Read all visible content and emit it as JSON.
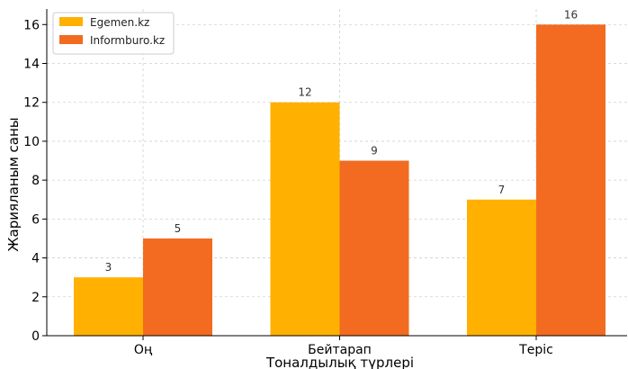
{
  "chart_data": {
    "type": "bar",
    "categories": [
      "Оң",
      "Бейтарап",
      "Теріс"
    ],
    "series": [
      {
        "name": "Egemen.kz",
        "values": [
          3,
          12,
          7
        ],
        "color": "#FFB000"
      },
      {
        "name": "Informburo.kz",
        "values": [
          5,
          9,
          16
        ],
        "color": "#F26B21"
      }
    ],
    "xlabel": "Тоналдылық түрлері",
    "ylabel": "Жарияланым саны",
    "ylim": [
      0,
      16.8
    ],
    "yticks": [
      0,
      2,
      4,
      6,
      8,
      10,
      12,
      14,
      16
    ],
    "grid": true,
    "legend_position": "top-left"
  }
}
